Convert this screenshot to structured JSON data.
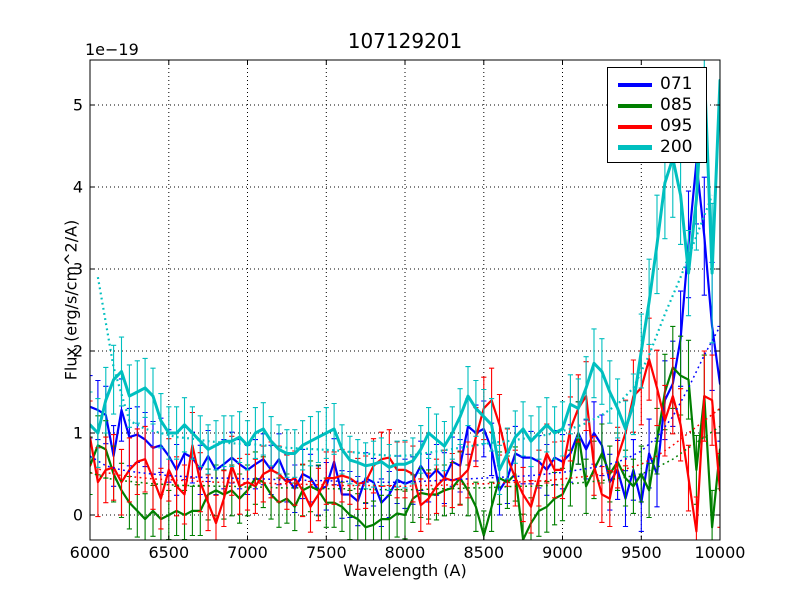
{
  "figure": {
    "title": "107129201",
    "offset_text": "1e−19",
    "xlabel": "Wavelength (A)",
    "ylabel": "Flux (erg/s/cm^2/A)"
  },
  "chart_data": {
    "type": "line",
    "title": "107129201",
    "xlabel": "Wavelength (A)",
    "ylabel": "Flux (erg/s/cm^2/A)",
    "y_offset_label": "1e−19",
    "y_unit_scale": "1e-19",
    "xlim": [
      6000,
      10000
    ],
    "ylim": [
      -0.305,
      5.549
    ],
    "x_ticks": [
      6000,
      6500,
      7000,
      7500,
      8000,
      8500,
      9000,
      9500,
      10000
    ],
    "y_ticks": [
      0,
      1,
      2,
      3,
      4,
      5
    ],
    "grid": true,
    "grid_style": "dotted",
    "background": "#ffffff",
    "legend_position": "upper right",
    "legend": [
      "071",
      "085",
      "095",
      "200"
    ],
    "x_start": 6000,
    "x_step": 50,
    "series": [
      {
        "name": "071",
        "color": "#0000ff",
        "linewidth": 2.2,
        "style": "solid",
        "values": [
          1.32,
          1.28,
          1.22,
          0.72,
          1.28,
          0.95,
          0.98,
          0.92,
          0.82,
          0.85,
          0.72,
          0.55,
          0.75,
          0.7,
          0.55,
          0.72,
          0.55,
          0.62,
          0.7,
          0.62,
          0.55,
          0.62,
          0.68,
          0.55,
          0.68,
          0.45,
          0.32,
          0.5,
          0.45,
          0.3,
          0.35,
          0.65,
          0.25,
          0.25,
          0.17,
          0.45,
          0.4,
          0.15,
          0.25,
          0.43,
          0.38,
          0.42,
          0.6,
          0.45,
          0.55,
          0.45,
          0.65,
          0.6,
          1.08,
          1.0,
          1.05,
          0.8,
          0.3,
          0.45,
          0.75,
          0.7,
          0.7,
          0.65,
          0.55,
          0.7,
          0.65,
          0.75,
          1.0,
          0.8,
          1.0,
          0.85,
          0.4,
          0.55,
          0.2,
          0.55,
          0.15,
          0.75,
          0.5,
          1.4,
          1.6,
          2.15,
          3.3,
          4.3,
          3.4,
          2.3,
          1.6
        ],
        "errors": [
          0.38,
          0.36,
          0.35,
          0.37,
          0.38,
          0.35,
          0.34,
          0.33,
          0.32,
          0.33,
          0.32,
          0.31,
          0.32,
          0.31,
          0.3,
          0.31,
          0.3,
          0.3,
          0.31,
          0.3,
          0.3,
          0.3,
          0.31,
          0.3,
          0.31,
          0.29,
          0.29,
          0.3,
          0.29,
          0.3,
          0.29,
          0.28,
          0.29,
          0.28,
          0.3,
          0.31,
          0.29,
          0.29,
          0.28,
          0.29,
          0.3,
          0.29,
          0.3,
          0.29,
          0.31,
          0.31,
          0.3,
          0.32,
          0.34,
          0.34,
          0.34,
          0.32,
          0.3,
          0.31,
          0.33,
          0.32,
          0.32,
          0.32,
          0.31,
          0.33,
          0.33,
          0.35,
          0.38,
          0.36,
          0.38,
          0.37,
          0.34,
          0.36,
          0.34,
          0.37,
          0.35,
          0.42,
          0.4,
          0.48,
          0.52,
          0.58,
          0.65,
          0.75,
          0.72,
          0.78,
          0.7
        ]
      },
      {
        "name": "085",
        "color": "#007f00",
        "linewidth": 2.2,
        "style": "solid",
        "values": [
          0.6,
          0.85,
          0.8,
          0.5,
          0.3,
          0.15,
          0.05,
          -0.05,
          0.05,
          -0.05,
          0.0,
          0.05,
          0.0,
          0.05,
          0.05,
          0.25,
          0.3,
          0.25,
          0.3,
          0.2,
          0.3,
          0.45,
          0.4,
          0.25,
          0.15,
          0.2,
          0.1,
          0.3,
          0.35,
          0.3,
          0.15,
          0.15,
          0.1,
          0.0,
          -0.05,
          -0.15,
          -0.12,
          -0.05,
          -0.05,
          0.02,
          0.0,
          0.2,
          0.27,
          0.25,
          0.25,
          0.3,
          0.33,
          0.45,
          0.3,
          0.1,
          -0.25,
          0.1,
          0.45,
          0.4,
          0.5,
          -0.3,
          -0.1,
          0.05,
          0.1,
          0.2,
          0.25,
          0.45,
          1.0,
          0.35,
          0.55,
          0.75,
          0.5,
          0.65,
          0.45,
          0.35,
          0.5,
          0.3,
          0.9,
          1.5,
          1.8,
          1.7,
          1.65,
          0.55,
          1.45,
          -0.15,
          0.8
        ],
        "errors": [
          0.35,
          0.36,
          0.35,
          0.34,
          0.33,
          0.32,
          0.32,
          0.31,
          0.31,
          0.3,
          0.3,
          0.3,
          0.3,
          0.3,
          0.3,
          0.31,
          0.31,
          0.3,
          0.31,
          0.3,
          0.31,
          0.32,
          0.31,
          0.3,
          0.3,
          0.3,
          0.29,
          0.31,
          0.31,
          0.31,
          0.3,
          0.3,
          0.3,
          0.3,
          0.31,
          0.3,
          0.29,
          0.29,
          0.29,
          0.29,
          0.29,
          0.29,
          0.3,
          0.3,
          0.31,
          0.31,
          0.31,
          0.32,
          0.31,
          0.3,
          0.3,
          0.3,
          0.32,
          0.32,
          0.33,
          0.31,
          0.31,
          0.31,
          0.31,
          0.32,
          0.32,
          0.34,
          0.38,
          0.33,
          0.35,
          0.36,
          0.34,
          0.35,
          0.34,
          0.33,
          0.34,
          0.33,
          0.4,
          0.46,
          0.5,
          0.48,
          0.48,
          0.42,
          0.5,
          0.45,
          0.48
        ]
      },
      {
        "name": "095",
        "color": "#ff0000",
        "linewidth": 2.2,
        "style": "solid",
        "values": [
          0.95,
          0.4,
          0.55,
          0.58,
          0.4,
          0.55,
          0.65,
          0.68,
          0.45,
          0.2,
          0.55,
          0.35,
          0.25,
          0.85,
          0.4,
          0.15,
          -0.1,
          0.2,
          0.6,
          0.35,
          0.4,
          0.35,
          0.5,
          0.55,
          0.5,
          0.4,
          0.45,
          0.3,
          0.1,
          0.25,
          0.45,
          0.45,
          0.48,
          0.45,
          0.38,
          0.4,
          0.6,
          0.68,
          0.7,
          0.55,
          0.55,
          0.5,
          0.12,
          0.2,
          0.35,
          0.45,
          0.42,
          0.45,
          0.55,
          0.95,
          1.3,
          1.4,
          1.1,
          0.7,
          0.45,
          0.25,
          0.1,
          0.45,
          0.75,
          0.55,
          0.55,
          1.05,
          1.3,
          1.45,
          0.6,
          0.25,
          0.2,
          0.7,
          1.0,
          1.45,
          1.55,
          1.9,
          1.55,
          1.15,
          1.45,
          1.1,
          0.45,
          -0.2,
          1.45,
          1.4,
          0.3
        ],
        "errors": [
          0.44,
          0.42,
          0.4,
          0.4,
          0.4,
          0.39,
          0.4,
          0.4,
          0.38,
          0.37,
          0.38,
          0.36,
          0.36,
          0.4,
          0.36,
          0.34,
          0.34,
          0.34,
          0.36,
          0.34,
          0.34,
          0.33,
          0.34,
          0.34,
          0.34,
          0.33,
          0.33,
          0.32,
          0.31,
          0.32,
          0.32,
          0.32,
          0.32,
          0.32,
          0.31,
          0.32,
          0.33,
          0.33,
          0.34,
          0.34,
          0.34,
          0.34,
          0.32,
          0.31,
          0.33,
          0.34,
          0.33,
          0.33,
          0.34,
          0.36,
          0.38,
          0.39,
          0.37,
          0.35,
          0.34,
          0.33,
          0.32,
          0.34,
          0.36,
          0.34,
          0.35,
          0.39,
          0.41,
          0.42,
          0.36,
          0.34,
          0.34,
          0.37,
          0.4,
          0.44,
          0.45,
          0.5,
          0.46,
          0.43,
          0.46,
          0.44,
          0.4,
          0.42,
          0.55,
          0.55,
          0.45
        ]
      },
      {
        "name": "200",
        "color": "#00bfbf",
        "linewidth": 3.0,
        "style": "solid",
        "values": [
          1.1,
          1.0,
          1.4,
          1.65,
          1.75,
          1.45,
          1.5,
          1.55,
          1.45,
          1.15,
          1.0,
          1.0,
          1.1,
          1.0,
          0.9,
          0.8,
          0.85,
          0.9,
          0.9,
          0.95,
          0.85,
          1.0,
          1.05,
          0.9,
          0.8,
          0.75,
          0.75,
          0.85,
          0.9,
          0.95,
          1.0,
          1.05,
          0.8,
          0.67,
          0.64,
          0.6,
          0.62,
          0.65,
          0.58,
          0.62,
          0.62,
          0.66,
          0.8,
          1.0,
          0.92,
          0.84,
          1.0,
          1.2,
          1.45,
          1.3,
          1.2,
          1.1,
          0.55,
          0.75,
          0.95,
          1.05,
          0.9,
          1.0,
          1.1,
          1.0,
          1.05,
          1.35,
          1.3,
          1.55,
          1.85,
          1.75,
          1.5,
          1.3,
          1.05,
          1.35,
          2.0,
          2.6,
          3.3,
          4.05,
          4.35,
          3.9,
          2.95,
          3.85,
          5.45,
          2.95,
          5.3
        ],
        "errors": [
          0.4,
          0.42,
          0.4,
          0.42,
          0.42,
          0.38,
          0.38,
          0.36,
          0.34,
          0.33,
          0.32,
          0.32,
          0.33,
          0.32,
          0.31,
          0.3,
          0.3,
          0.31,
          0.31,
          0.31,
          0.3,
          0.31,
          0.32,
          0.3,
          0.3,
          0.29,
          0.29,
          0.3,
          0.3,
          0.31,
          0.31,
          0.31,
          0.3,
          0.29,
          0.28,
          0.28,
          0.28,
          0.29,
          0.28,
          0.28,
          0.29,
          0.28,
          0.29,
          0.31,
          0.31,
          0.3,
          0.32,
          0.34,
          0.36,
          0.34,
          0.33,
          0.32,
          0.3,
          0.31,
          0.32,
          0.33,
          0.31,
          0.32,
          0.33,
          0.32,
          0.33,
          0.36,
          0.36,
          0.38,
          0.42,
          0.4,
          0.38,
          0.36,
          0.34,
          0.37,
          0.45,
          0.52,
          0.6,
          0.68,
          0.72,
          0.6,
          0.52,
          0.62,
          0.72,
          0.85,
          0.6
        ]
      }
    ],
    "noise_series": [
      {
        "name": "071-noise",
        "color": "#0000ff",
        "linewidth": 1.5,
        "style": "dotted",
        "x_start": 6000,
        "x_step": 100,
        "values": [
          0.72,
          0.6,
          0.55,
          0.52,
          0.5,
          0.48,
          0.47,
          0.46,
          0.45,
          0.45,
          0.44,
          0.44,
          0.43,
          0.43,
          0.42,
          0.42,
          0.41,
          0.41,
          0.4,
          0.4,
          0.4,
          0.41,
          0.42,
          0.43,
          0.44,
          0.45,
          0.46,
          0.47,
          0.48,
          0.5,
          0.52,
          0.55,
          0.58,
          0.62,
          0.68,
          0.78,
          0.95,
          1.2,
          1.55,
          1.95,
          2.3
        ]
      },
      {
        "name": "085-noise",
        "color": "#007f00",
        "linewidth": 1.5,
        "style": "dotted",
        "x_start": 6000,
        "x_step": 100,
        "values": [
          0.52,
          0.45,
          0.42,
          0.4,
          0.38,
          0.37,
          0.36,
          0.36,
          0.35,
          0.35,
          0.34,
          0.34,
          0.33,
          0.33,
          0.33,
          0.32,
          0.32,
          0.32,
          0.31,
          0.31,
          0.31,
          0.31,
          0.32,
          0.32,
          0.33,
          0.33,
          0.34,
          0.35,
          0.35,
          0.36,
          0.37,
          0.39,
          0.41,
          0.43,
          0.46,
          0.5,
          0.58,
          0.68,
          0.82,
          0.95,
          1.08
        ]
      },
      {
        "name": "095-noise",
        "color": "#ff0000",
        "linewidth": 1.5,
        "style": "dotted",
        "x_start": 6000,
        "x_step": 100,
        "values": [
          0.62,
          0.52,
          0.48,
          0.46,
          0.44,
          0.43,
          0.42,
          0.41,
          0.4,
          0.4,
          0.39,
          0.39,
          0.38,
          0.38,
          0.37,
          0.37,
          0.36,
          0.36,
          0.36,
          0.35,
          0.35,
          0.36,
          0.36,
          0.37,
          0.38,
          0.38,
          0.39,
          0.4,
          0.41,
          0.42,
          0.44,
          0.46,
          0.48,
          0.52,
          0.56,
          0.62,
          0.72,
          0.85,
          1.0,
          1.15,
          1.3
        ]
      },
      {
        "name": "200-noise",
        "color": "#00bfbf",
        "linewidth": 2.2,
        "style": "dotted",
        "x_start": 6050,
        "x_step": 100,
        "values": [
          2.9,
          1.8,
          1.15,
          1.05,
          1.0,
          0.95,
          0.93,
          0.9,
          0.88,
          0.87,
          0.86,
          0.84,
          0.82,
          0.81,
          0.8,
          0.79,
          0.77,
          0.75,
          0.73,
          0.72,
          0.73,
          0.76,
          0.79,
          0.82,
          0.85,
          0.88,
          0.9,
          0.93,
          0.96,
          1.0,
          1.05,
          1.12,
          1.22,
          1.35,
          1.55,
          1.95,
          2.45,
          2.9,
          3.4,
          3.9
        ]
      }
    ]
  }
}
